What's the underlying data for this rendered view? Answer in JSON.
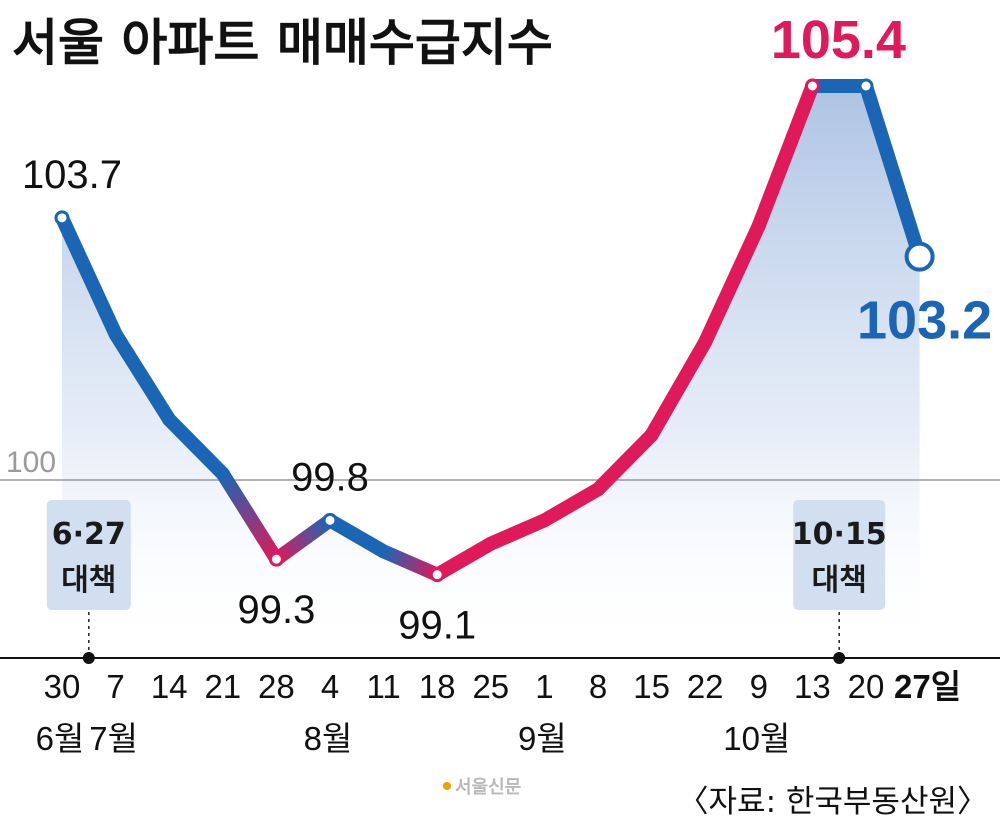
{
  "title": "서울 아파트 매매수급지수",
  "source": "〈자료: 한국부동산원〉",
  "logo_text": "서울신문",
  "colors": {
    "rise": "#e0195a",
    "fall": "#1a66b5",
    "fill": "#c9d8ee",
    "policy_box": "#d2dff0"
  },
  "chart_data": {
    "type": "line",
    "title": "서울 아파트 매매수급지수",
    "x": [
      "30",
      "7",
      "14",
      "21",
      "28",
      "4",
      "11",
      "18",
      "25",
      "1",
      "8",
      "15",
      "22",
      "9",
      "13",
      "20",
      "27일"
    ],
    "month_labels": [
      {
        "label": "6월",
        "under_index": 0
      },
      {
        "label": "7월",
        "under_index": 1
      },
      {
        "label": "8월",
        "under_index": 5
      },
      {
        "label": "9월",
        "under_index": 9
      },
      {
        "label": "10월",
        "under_index": 13
      }
    ],
    "series": [
      {
        "values": [
          103.7,
          102.2,
          101.1,
          100.4,
          99.3,
          99.8,
          99.4,
          99.1,
          99.5,
          99.8,
          100.2,
          100.9,
          102.1,
          103.6,
          105.4,
          105.4,
          103.2
        ]
      }
    ],
    "data_labels": [
      {
        "index": 0,
        "text": "103.7"
      },
      {
        "index": 4,
        "text": "99.3"
      },
      {
        "index": 5,
        "text": "99.8"
      },
      {
        "index": 7,
        "text": "99.1"
      },
      {
        "index": 14,
        "text": "105.4"
      },
      {
        "index": 16,
        "text": "103.2"
      }
    ],
    "reference_line": {
      "value": 100,
      "label": "100"
    },
    "events": [
      {
        "label_line1": "6·27",
        "label_line2": "대책",
        "after_index": 0
      },
      {
        "label_line1": "10·15",
        "label_line2": "대책",
        "after_index": 14
      }
    ],
    "ylim": [
      98.0,
      105.4
    ]
  }
}
